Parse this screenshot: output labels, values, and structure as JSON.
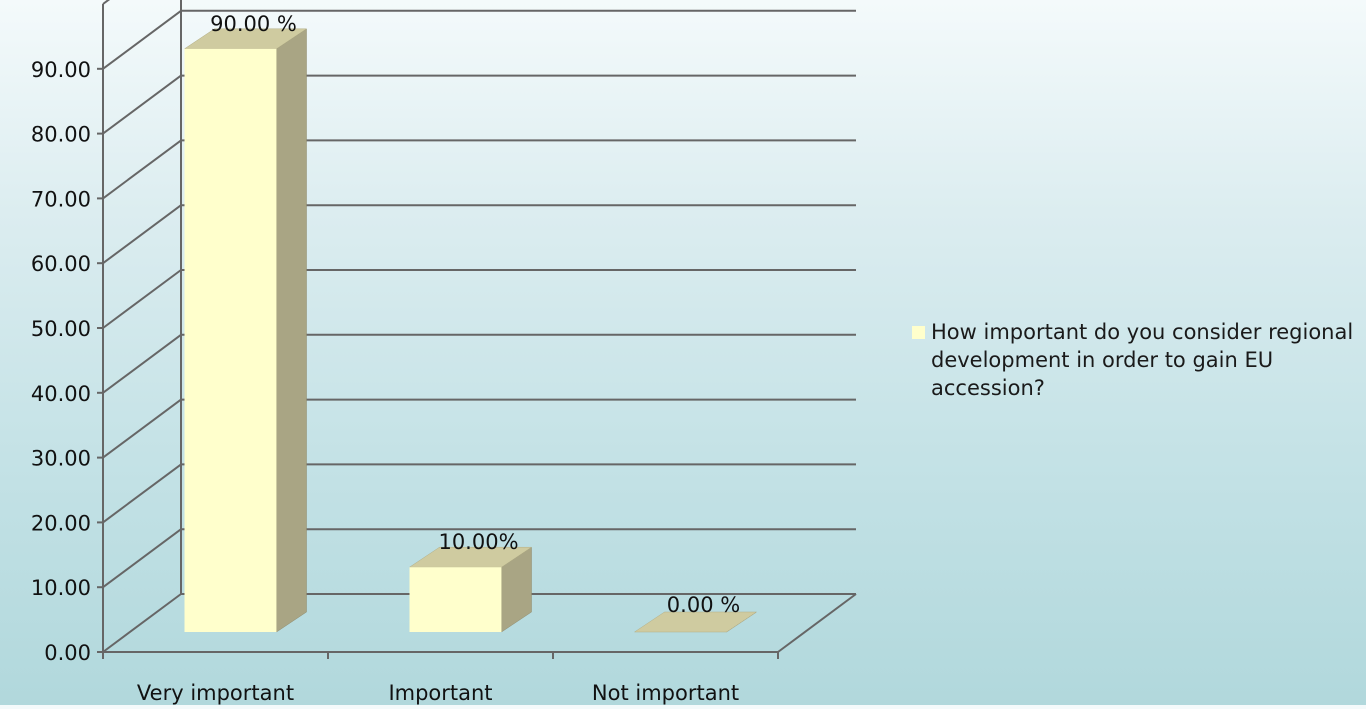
{
  "chart_data": {
    "type": "bar",
    "categories": [
      "Very important",
      "Important",
      "Not important"
    ],
    "series": [
      {
        "name": "How important do you consider regional development in order to gain EU accession?",
        "values": [
          90.0,
          10.0,
          0.0
        ]
      }
    ],
    "data_labels": [
      "90.00 %",
      "10.00%",
      "0.00 %"
    ],
    "y_ticks": [
      "0.00",
      "10.00",
      "20.00",
      "30.00",
      "40.00",
      "50.00",
      "60.00",
      "70.00",
      "80.00",
      "90.00"
    ],
    "ylim": [
      0,
      100
    ],
    "grid": true,
    "three_d": true,
    "legend_position": "right",
    "colors": {
      "bar_front": "#ffffcc",
      "bar_side": "#a9a584",
      "bar_top": "#cfcba0",
      "grid": "#666666"
    }
  }
}
